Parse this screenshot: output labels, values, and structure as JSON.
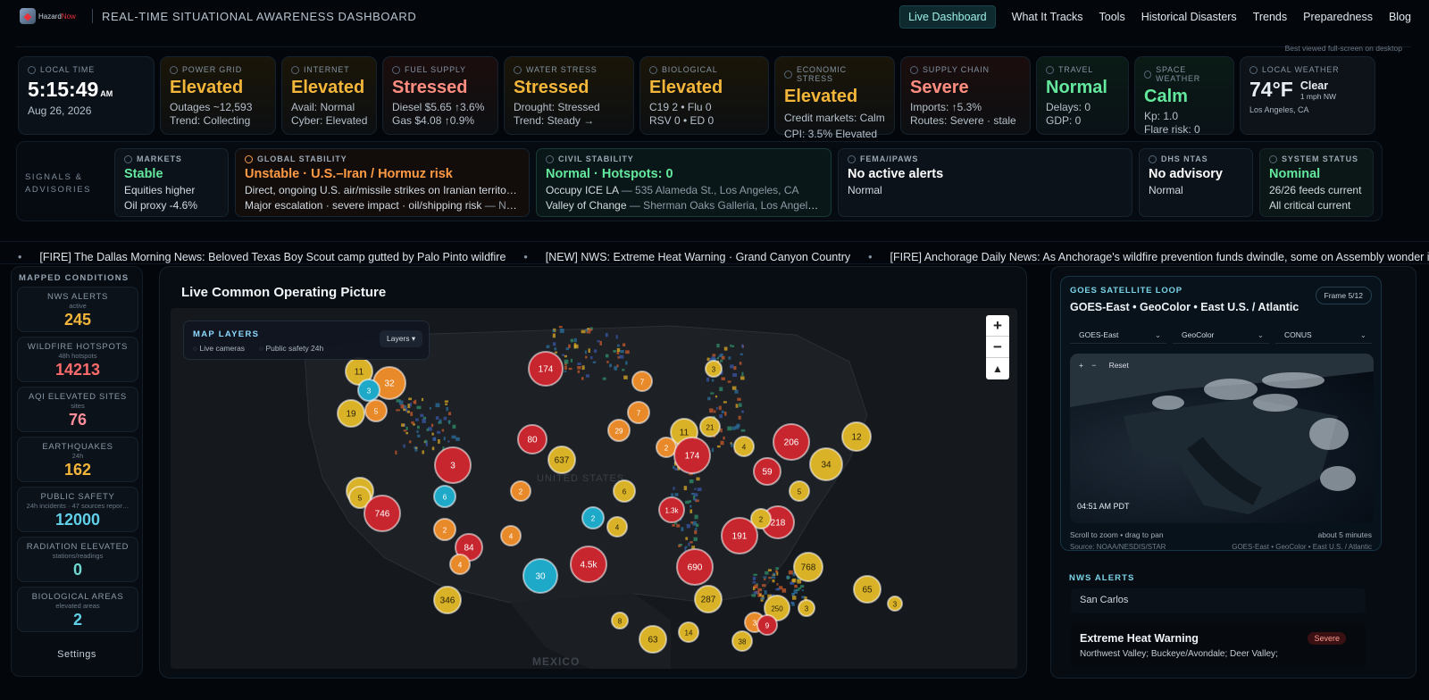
{
  "nav": {
    "logo_prefix": "Hazard",
    "logo_suffix": "Now",
    "title": "REAL-TIME SITUATIONAL AWARENESS DASHBOARD",
    "links": [
      "Live Dashboard",
      "What It Tracks",
      "Tools",
      "Historical Disasters",
      "Trends",
      "Preparedness",
      "Blog"
    ],
    "note": "Best viewed full-screen on desktop"
  },
  "status": [
    {
      "label": "LOCAL TIME",
      "value": "5:15:49",
      "ampm": "AM",
      "sub1": "Aug 26, 2026"
    },
    {
      "label": "POWER GRID",
      "value": "Elevated",
      "sub1": "Outages ~12,593",
      "sub2": "Trend: Collecting"
    },
    {
      "label": "INTERNET",
      "value": "Elevated",
      "sub1": "Avail: Normal",
      "sub2": "Cyber: Elevated"
    },
    {
      "label": "FUEL SUPPLY",
      "value": "Stressed",
      "sub1": "Diesel $5.65 ↑3.6%",
      "sub2": "Gas $4.08 ↑0.9%"
    },
    {
      "label": "WATER STRESS",
      "value": "Stressed",
      "sub1": "Drought: Stressed",
      "sub2": "Trend: Steady →"
    },
    {
      "label": "BIOLOGICAL",
      "value": "Elevated",
      "sub1": "C19 2 • Flu 0",
      "sub2": "RSV 0 • ED 0"
    },
    {
      "label": "ECONOMIC STRESS",
      "value": "Elevated",
      "sub1": "Credit markets: Calm",
      "sub2": "CPI: 3.5% Elevated"
    },
    {
      "label": "SUPPLY CHAIN",
      "value": "Severe",
      "sub1": "Imports: ↑5.3%",
      "sub2": "Routes: Severe · stale"
    },
    {
      "label": "TRAVEL",
      "value": "Normal",
      "sub1": "Delays: 0",
      "sub2": "GDP: 0"
    },
    {
      "label": "SPACE WEATHER",
      "value": "Calm",
      "sub1": "Kp: 1.0",
      "sub2": "Flare risk: 0"
    },
    {
      "label": "LOCAL WEATHER",
      "temp": "74°F",
      "cond": "Clear",
      "wind": "1 mph NW",
      "loc": "Los Angeles, CA"
    }
  ],
  "signals": {
    "title": "SIGNALS & ADVISORIES",
    "items": [
      {
        "label": "MARKETS",
        "value": "Stable",
        "sub1": "Equities higher",
        "sub2": "Oil proxy -4.6%"
      },
      {
        "label": "GLOBAL STABILITY",
        "value": "Unstable · U.S.–Iran / Hormuz risk",
        "sub1": "Direct, ongoing U.S. air/missile strikes on Iranian territory …",
        "sub2a": "Major escalation · severe impact · oil/shipping risk",
        "sub2b": " — Nati…"
      },
      {
        "label": "CIVIL STABILITY",
        "value": "Normal · Hotspots: 0",
        "sub1a": "Occupy ICE LA",
        "sub1b": " — 535 Alameda St., Los Angeles, CA",
        "sub2a": "Valley of Change",
        "sub2b": " — Sherman Oaks Galleria, Los Angeles…"
      },
      {
        "label": "FEMA/IPAWS",
        "value": "No active alerts",
        "sub1": "Normal"
      },
      {
        "label": "DHS NTAS",
        "value": "No advisory",
        "sub1": "Normal"
      },
      {
        "label": "SYSTEM STATUS",
        "value": "Nominal",
        "sub1": "26/26 feeds current",
        "sub2": "All critical current"
      }
    ]
  },
  "ticker": [
    "[FIRE] The Dallas Morning News: Beloved Texas Boy Scout camp gutted by Palo Pinto wildfire",
    "[NEW] NWS: Extreme Heat Warning · Grand Canyon Country",
    "[FIRE] Anchorage Daily News: As Anchorage's wildfire prevention funds dwindle, some on Assembly wonder if resid"
  ],
  "mapped": {
    "title": "MAPPED CONDITIONS",
    "items": [
      {
        "name": "NWS ALERTS",
        "sub": "active",
        "value": "245",
        "color": "#f4b63a"
      },
      {
        "name": "WILDFIRE HOTSPOTS",
        "sub": "48h hotspots",
        "value": "14213",
        "color": "#ff6b6b"
      },
      {
        "name": "AQI ELEVATED SITES",
        "sub": "sites",
        "value": "76",
        "color": "#ff8e9a"
      },
      {
        "name": "EARTHQUAKES",
        "sub": "24h",
        "value": "162",
        "color": "#f4b63a"
      },
      {
        "name": "PUBLIC SAFETY",
        "sub": "24h incidents · 47 sources repor…",
        "value": "12000",
        "color": "#5fd0e8"
      },
      {
        "name": "RADIATION ELEVATED",
        "sub": "stations/readings",
        "value": "0",
        "color": "#6dd9d0"
      },
      {
        "name": "BIOLOGICAL AREAS",
        "sub": "elevated areas",
        "value": "2",
        "color": "#5fd0e8"
      }
    ],
    "settings": "Settings"
  },
  "cop": {
    "title": "Live Common Operating Picture",
    "layers_title": "MAP LAYERS",
    "opt1": "Live cameras",
    "opt2": "Public safety 24h",
    "layers_btn": "Layers ▾",
    "country1": "UNITED STATES",
    "country2": "MEXICO",
    "clusters": [
      {
        "v": "174",
        "c": "r"
      },
      {
        "v": "11",
        "c": "y"
      },
      {
        "v": "32",
        "c": "o"
      },
      {
        "v": "3",
        "c": "c"
      },
      {
        "v": "19",
        "c": "y"
      },
      {
        "v": "5",
        "c": "o"
      },
      {
        "v": "7",
        "c": "o"
      },
      {
        "v": "3",
        "c": "y"
      },
      {
        "v": "7",
        "c": "o"
      },
      {
        "v": "80",
        "c": "r"
      },
      {
        "v": "29",
        "c": "o"
      },
      {
        "v": "11",
        "c": "y"
      },
      {
        "v": "21",
        "c": "y"
      },
      {
        "v": "2",
        "c": "o"
      },
      {
        "v": "174",
        "c": "r"
      },
      {
        "v": "4",
        "c": "y"
      },
      {
        "v": "206",
        "c": "r"
      },
      {
        "v": "12",
        "c": "y"
      },
      {
        "v": "637",
        "c": "y"
      },
      {
        "v": "3",
        "c": "r"
      },
      {
        "v": "2",
        "c": "o"
      },
      {
        "v": "59",
        "c": "r"
      },
      {
        "v": "34",
        "c": "y"
      },
      {
        "v": "6",
        "c": "c"
      },
      {
        "v": "3",
        "c": "y"
      },
      {
        "v": "6",
        "c": "y"
      },
      {
        "v": "5",
        "c": "y"
      },
      {
        "v": "5",
        "c": "y"
      },
      {
        "v": "746",
        "c": "r"
      },
      {
        "v": "1.3k",
        "c": "r"
      },
      {
        "v": "218",
        "c": "r"
      },
      {
        "v": "2",
        "c": "y"
      },
      {
        "v": "2",
        "c": "c"
      },
      {
        "v": "4",
        "c": "y"
      },
      {
        "v": "191",
        "c": "r"
      },
      {
        "v": "2",
        "c": "o"
      },
      {
        "v": "4",
        "c": "o"
      },
      {
        "v": "84",
        "c": "r"
      },
      {
        "v": "4",
        "c": "o"
      },
      {
        "v": "4.5k",
        "c": "r"
      },
      {
        "v": "690",
        "c": "r"
      },
      {
        "v": "30",
        "c": "c"
      },
      {
        "v": "768",
        "c": "y"
      },
      {
        "v": "65",
        "c": "y"
      },
      {
        "v": "346",
        "c": "y"
      },
      {
        "v": "287",
        "c": "y"
      },
      {
        "v": "250",
        "c": "y"
      },
      {
        "v": "3",
        "c": "y"
      },
      {
        "v": "3",
        "c": "y"
      },
      {
        "v": "8",
        "c": "y"
      },
      {
        "v": "14",
        "c": "y"
      },
      {
        "v": "63",
        "c": "y"
      },
      {
        "v": "38",
        "c": "y"
      },
      {
        "v": "3",
        "c": "o"
      },
      {
        "v": "9",
        "c": "r"
      }
    ]
  },
  "goes": {
    "title": "GOES SATELLITE LOOP",
    "subtitle": "GOES-East • GeoColor • East U.S. / Atlantic",
    "frame": "Frame 5/12",
    "selects": [
      "GOES-East",
      "GeoColor",
      "CONUS"
    ],
    "time": "04:51 AM PDT",
    "hint": "Scroll to zoom • drag to pan",
    "age": "about 5 minutes",
    "source": "Source: NOAA/NESDIS/STAR",
    "source_r": "GOES-East • GeoColor • East U.S. / Atlantic",
    "plus": "+",
    "minus": "−",
    "reset": "Reset"
  },
  "nws": {
    "title": "NWS ALERTS",
    "row1": "San Carlos",
    "alert": "Extreme Heat Warning",
    "areas": "Northwest Valley; Buckeye/Avondale; Deer Valley;",
    "severity": "Severe"
  },
  "colors": {
    "r": "#c8262e",
    "o": "#e8892a",
    "y": "#d9b228",
    "c": "#1fa9c9"
  }
}
